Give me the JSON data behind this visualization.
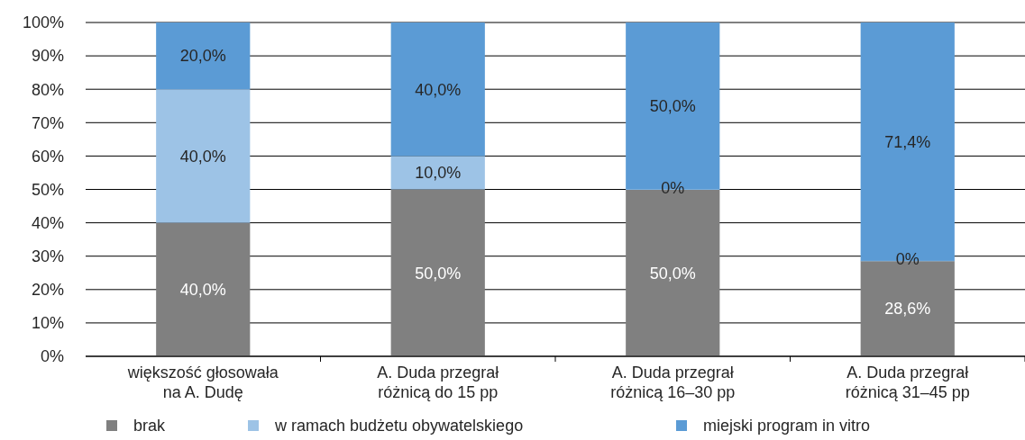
{
  "chart_data": {
    "type": "bar",
    "stacked": true,
    "categories": [
      "większość głosowała na A. Dudę",
      "A. Duda przegrał różnicą do 15 pp",
      "A. Duda przegrał różnicą 16–30 pp",
      "A. Duda przegrał różnicą 31–45 pp"
    ],
    "series": [
      {
        "name": "brak",
        "color": "#808080",
        "values": [
          40,
          50,
          50,
          28.6
        ],
        "value_labels": [
          "40,0%",
          "50,0%",
          "50,0%",
          "28,6%"
        ]
      },
      {
        "name": "w ramach budżetu obywatelskiego",
        "color": "#9dc3e6",
        "values": [
          40,
          10,
          0,
          0
        ],
        "value_labels": [
          "40,0%",
          "10,0%",
          "0%",
          "0%"
        ]
      },
      {
        "name": "miejski program in vitro",
        "color": "#5b9bd5",
        "values": [
          20,
          40,
          50,
          71.4
        ],
        "value_labels": [
          "20,0%",
          "40,0%",
          "50,0%",
          "71,4%"
        ]
      }
    ],
    "ylim": [
      0,
      100
    ],
    "yticks": [
      {
        "value": 0,
        "label": "0%"
      },
      {
        "value": 10,
        "label": "10%"
      },
      {
        "value": 20,
        "label": "20%"
      },
      {
        "value": 30,
        "label": "30%"
      },
      {
        "value": 40,
        "label": "40%"
      },
      {
        "value": 50,
        "label": "50%"
      },
      {
        "value": 60,
        "label": "60%"
      },
      {
        "value": 70,
        "label": "70%"
      },
      {
        "value": 80,
        "label": "80%"
      },
      {
        "value": 90,
        "label": "90%"
      },
      {
        "value": 100,
        "label": "100%"
      }
    ],
    "grid": "y",
    "legend": "bottom"
  }
}
